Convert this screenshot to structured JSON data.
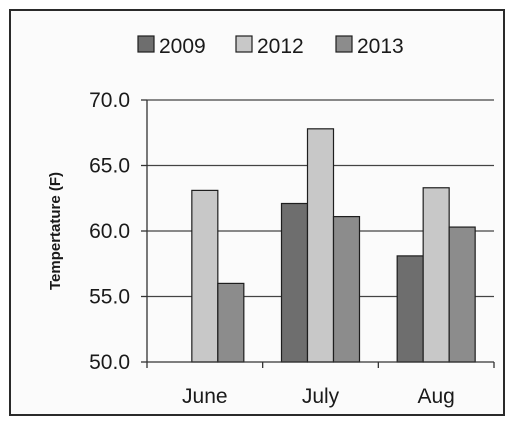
{
  "chart_data": {
    "type": "bar",
    "title": "",
    "xlabel": "",
    "ylabel": "Tempertature (F)",
    "categories": [
      "June",
      "July",
      "Aug"
    ],
    "ylim": [
      50,
      70
    ],
    "yticks": [
      50,
      55,
      60,
      65,
      70
    ],
    "ytick_labels": [
      "50.0",
      "55.0",
      "60.0",
      "65.0",
      "70.0"
    ],
    "grid": true,
    "legend_position": "top",
    "series": [
      {
        "name": "2009",
        "values": [
          null,
          62.1,
          58.1
        ],
        "color": "#6e6e6e"
      },
      {
        "name": "2012",
        "values": [
          63.1,
          67.8,
          63.3
        ],
        "color": "#c8c8c8"
      },
      {
        "name": "2013",
        "values": [
          56.0,
          61.1,
          60.3
        ],
        "color": "#8c8c8c"
      }
    ]
  }
}
